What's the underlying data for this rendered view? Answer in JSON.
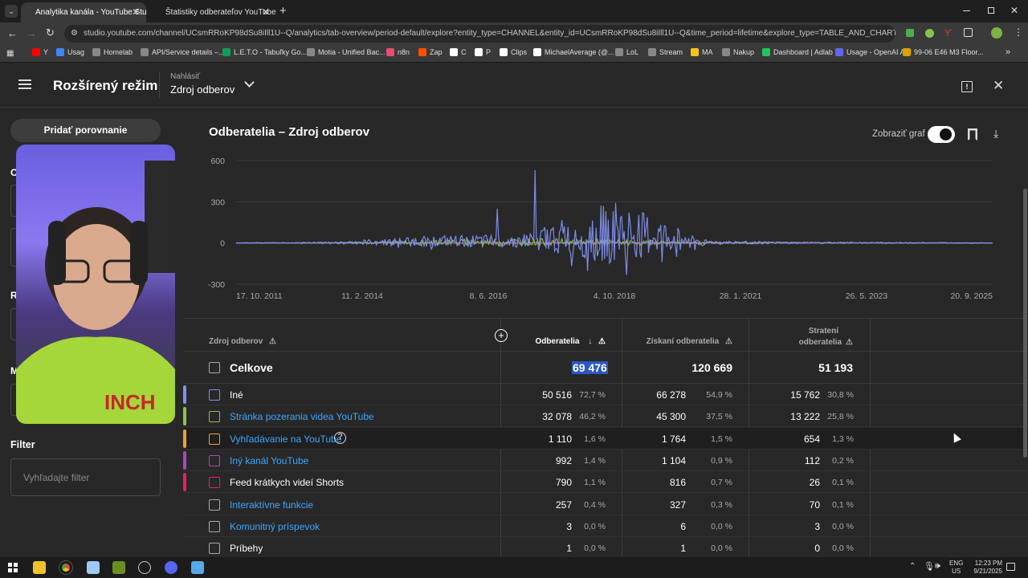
{
  "browser": {
    "tabs": [
      {
        "title": "Analytika kanála - YouTube Stu",
        "active": true
      },
      {
        "title": "Štatistiky odberateľov YouTube",
        "active": false
      }
    ],
    "new_tab_icon": "+",
    "url": "studio.youtube.com/channel/UCsmRRoKP98dSu8iIll1U--Q/analytics/tab-overview/period-default/explore?entity_type=CHANNEL&entity_id=UCsmRRoKP98dSu8iIll1U--Q&time_period=lifetime&explore_type=TABLE_AND_CHART&m...",
    "bookmarks": [
      {
        "label": "Y",
        "color": "#ff0000"
      },
      {
        "label": "Usag",
        "color": "#4285f4"
      },
      {
        "label": "Homelab",
        "color": "#888888"
      },
      {
        "label": "API/Service details –...",
        "color": "#888888"
      },
      {
        "label": "L.E.T.O - Tabuľky Go...",
        "color": "#0f9d58"
      },
      {
        "label": "Motia - Unified Bac...",
        "color": "#888888"
      },
      {
        "label": "n8n",
        "color": "#ea4b71"
      },
      {
        "label": "Zap",
        "color": "#ff4f00"
      },
      {
        "label": "C",
        "color": "#ffffff"
      },
      {
        "label": "P",
        "color": "#ffffff"
      },
      {
        "label": "Clips",
        "color": "#ffffff"
      },
      {
        "label": "MichaelAverage (@...",
        "color": "#ffffff"
      },
      {
        "label": "LoL",
        "color": "#888888"
      },
      {
        "label": "Stream",
        "color": "#888888"
      },
      {
        "label": "MA",
        "color": "#f5c518"
      },
      {
        "label": "Nakup",
        "color": "#888888"
      },
      {
        "label": "Dashboard | Adlab",
        "color": "#22c55e"
      },
      {
        "label": "Usage - OpenAI API",
        "color": "#6366f1"
      },
      {
        "label": "99-06 E46 M3 Floor...",
        "color": "#e0a000"
      }
    ]
  },
  "header": {
    "title": "Rozšírený režim",
    "report_label": "Nahlásiť",
    "report_value": "Zdroj odberov"
  },
  "sidebar": {
    "compare_button": "Pridať porovnanie",
    "hidden_letters": [
      "O",
      "R",
      "M"
    ],
    "filter_title": "Filter",
    "filter_placeholder": "Vyhľadajte filter"
  },
  "main": {
    "title": "Odberatelia – Zdroj odberov",
    "show_chart_label": "Zobraziť graf",
    "show_chart_on": true
  },
  "chart_data": {
    "type": "line",
    "title": "",
    "ylim": [
      -300,
      600
    ],
    "yticks": [
      "600",
      "300",
      "0",
      "-300"
    ],
    "xticks": [
      "17. 10. 2011",
      "11. 2. 2014",
      "8. 6. 2016",
      "4. 10. 2018",
      "28. 1. 2021",
      "26. 5. 2023",
      "20. 9. 2025"
    ],
    "grid": true,
    "series": [
      {
        "color": "#7f8ff0",
        "x": [
          "17. 10. 2011",
          "11. 2. 2014",
          "2015",
          "8. 6. 2016",
          "2017",
          "4. 10. 2018",
          "28. 1. 2021",
          "26. 5. 2023",
          "20. 9. 2025"
        ],
        "values": [
          5,
          12,
          90,
          100,
          530,
          30,
          10,
          8,
          5
        ]
      },
      {
        "color": "#8bc34a",
        "x": [
          "17. 10. 2011",
          "11. 2. 2014",
          "2015",
          "8. 6. 2016",
          "2017",
          "4. 10. 2018",
          "28. 1. 2021",
          "26. 5. 2023",
          "20. 9. 2025"
        ],
        "values": [
          0,
          5,
          40,
          60,
          40,
          20,
          10,
          5,
          2
        ]
      },
      {
        "color": "#e91e63",
        "x": [
          "17. 10. 2011",
          "26. 5. 2023",
          "20. 9. 2025"
        ],
        "values": [
          0,
          15,
          0
        ]
      }
    ]
  },
  "table": {
    "headers": {
      "source": "Zdroj odberov",
      "subscribers": "Odberatelia",
      "gained": "Získaní odberatelia",
      "lost_line1": "Stratení",
      "lost_line2": "odberatelia"
    },
    "total": {
      "label": "Celkove",
      "subscribers": "69 476",
      "gained": "120 669",
      "lost": "51 193"
    },
    "rows": [
      {
        "label": "Iné",
        "link": false,
        "color": "#7f8ff0",
        "subs": "50 516",
        "subs_pct": "72,7 %",
        "gained": "66 278",
        "gained_pct": "54,9 %",
        "lost": "15 762",
        "lost_pct": "30,8 %"
      },
      {
        "label": "Stránka pozerania videa YouTube",
        "link": true,
        "color": "#8bc34a",
        "subs": "32 078",
        "subs_pct": "46,2 %",
        "gained": "45 300",
        "gained_pct": "37,5 %",
        "lost": "13 222",
        "lost_pct": "25,8 %"
      },
      {
        "label": "Vyhľadávanie na YouTube",
        "link": true,
        "color": "#f0a030",
        "subs": "1 110",
        "subs_pct": "1,6 %",
        "gained": "1 764",
        "gained_pct": "1,5 %",
        "lost": "654",
        "lost_pct": "1,3 %"
      },
      {
        "label": "Iný kanál YouTube",
        "link": true,
        "color": "#ab47bc",
        "subs": "992",
        "subs_pct": "1,4 %",
        "gained": "1 104",
        "gained_pct": "0,9 %",
        "lost": "112",
        "lost_pct": "0,2 %"
      },
      {
        "label": "Feed krátkych videí Shorts",
        "link": false,
        "color": "#e91e63",
        "subs": "790",
        "subs_pct": "1,1 %",
        "gained": "816",
        "gained_pct": "0,7 %",
        "lost": "26",
        "lost_pct": "0,1 %"
      },
      {
        "label": "Interaktívne funkcie",
        "link": true,
        "color": "#aaaaaa",
        "subs": "257",
        "subs_pct": "0,4 %",
        "gained": "327",
        "gained_pct": "0,3 %",
        "lost": "70",
        "lost_pct": "0,1 %"
      },
      {
        "label": "Komunitný príspevok",
        "link": true,
        "color": "#aaaaaa",
        "subs": "3",
        "subs_pct": "0,0 %",
        "gained": "6",
        "gained_pct": "0,0 %",
        "lost": "3",
        "lost_pct": "0,0 %"
      },
      {
        "label": "Príbehy",
        "link": false,
        "color": "#aaaaaa",
        "subs": "1",
        "subs_pct": "0,0 %",
        "gained": "1",
        "gained_pct": "0,0 %",
        "lost": "0",
        "lost_pct": "0,0 %"
      }
    ]
  },
  "taskbar": {
    "lang": "ENG",
    "region": "US",
    "time": "12:23 PM",
    "date": "9/21/2025"
  },
  "colors": {
    "link": "#3ea6ff",
    "highlight": "#2b57c5",
    "bg": "#282828"
  }
}
